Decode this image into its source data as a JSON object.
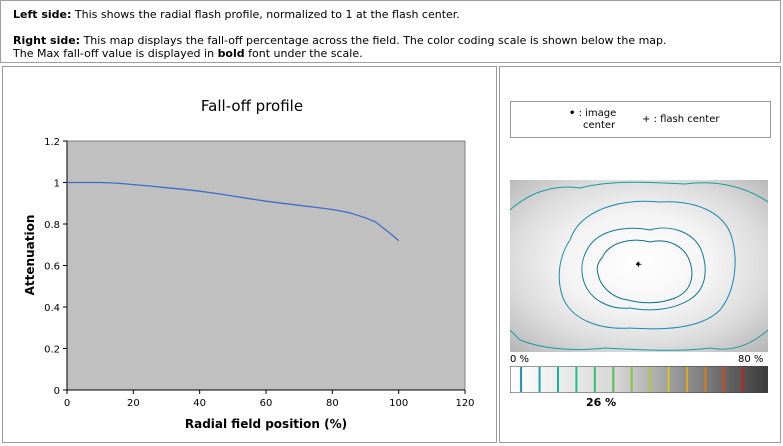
{
  "info": {
    "left_label": "Left side:",
    "left_text": " This shows the radial flash profile, normalized to 1 at the flash center.",
    "right_label": "Right side:",
    "right_text": " This map displays the fall-off percentage across the field. The color coding scale is shown below the map.",
    "line3_pre": "The Max fall-off value is displayed in ",
    "line3_bold": "bold",
    "line3_post": " font under the scale."
  },
  "chart_data": {
    "type": "line",
    "title": "Fall-off profile",
    "xlabel": "Radial field position (%)",
    "ylabel": "Attenuation",
    "xlim": [
      0,
      120
    ],
    "ylim": [
      0,
      1.2
    ],
    "x_ticks": [
      "0",
      "20",
      "40",
      "60",
      "80",
      "100",
      "120"
    ],
    "y_ticks": [
      "0",
      "0.2",
      "0.4",
      "0.6",
      "0.8",
      "1",
      "1.2"
    ],
    "grid": false,
    "plot_background": "#c0c0c0",
    "series": [
      {
        "color": "#3a6fc8",
        "x": [
          0,
          5,
          10,
          15,
          20,
          25,
          30,
          35,
          40,
          45,
          50,
          55,
          60,
          65,
          70,
          75,
          80,
          85,
          90,
          93,
          95,
          97,
          100
        ],
        "y": [
          1.0,
          1.0,
          1.0,
          0.997,
          0.99,
          0.983,
          0.975,
          0.967,
          0.958,
          0.947,
          0.935,
          0.922,
          0.91,
          0.9,
          0.89,
          0.88,
          0.87,
          0.855,
          0.83,
          0.81,
          0.785,
          0.76,
          0.72
        ]
      }
    ]
  },
  "legend": {
    "image_center_symbol": "•",
    "image_center_label_1": ": image",
    "image_center_label_2": "center",
    "flash_center_symbol": "+",
    "flash_center_label": ": flash center"
  },
  "scale": {
    "min_label": "0 %",
    "max_label": "80 %",
    "max_falloff": "26 %",
    "colors": [
      "#1f8fb0",
      "#1aa0a8",
      "#17b09c",
      "#1cc08a",
      "#30c070",
      "#50c050",
      "#80c840",
      "#b0c830",
      "#d0c828",
      "#e0a820",
      "#e07818",
      "#d84818",
      "#c82018"
    ]
  }
}
